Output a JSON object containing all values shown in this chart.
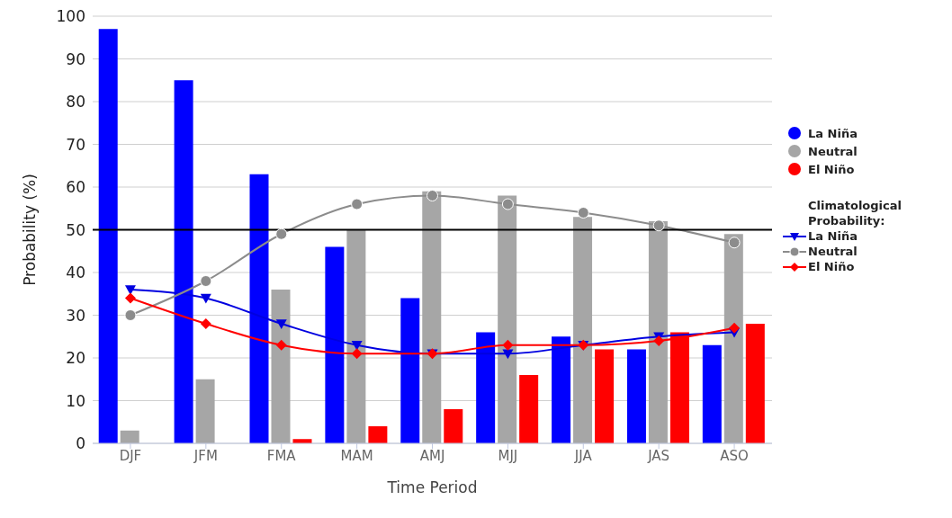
{
  "chart_data": {
    "type": "bar",
    "xlabel": "Time Period",
    "ylabel": "Probability (%)",
    "legend_title": "Climatological Probability:",
    "categories": [
      "DJF",
      "JFM",
      "FMA",
      "MAM",
      "AMJ",
      "MJJ",
      "JJA",
      "JAS",
      "ASO"
    ],
    "series": [
      {
        "name": "La Niña",
        "color": "#0000ff",
        "values": [
          97,
          85,
          63,
          46,
          34,
          26,
          25,
          22,
          23
        ]
      },
      {
        "name": "Neutral",
        "color": "#a6a6a6",
        "values": [
          3,
          15,
          36,
          50,
          59,
          58,
          53,
          52,
          49
        ]
      },
      {
        "name": "El Niño",
        "color": "#ff0000",
        "values": [
          0,
          0,
          1,
          4,
          8,
          16,
          22,
          26,
          28
        ]
      },
      {
        "name": "La Niña",
        "type": "line",
        "marker": "triangle",
        "color": "#0000e0",
        "values": [
          36,
          34,
          28,
          23,
          21,
          21,
          23,
          25,
          26
        ]
      },
      {
        "name": "Neutral",
        "type": "line",
        "marker": "circle",
        "color": "#8c8c8c",
        "values": [
          30,
          38,
          49,
          56,
          58,
          56,
          54,
          51,
          47
        ]
      },
      {
        "name": "El Niño",
        "type": "line",
        "marker": "diamond",
        "color": "#ff0000",
        "values": [
          34,
          28,
          23,
          21,
          21,
          23,
          23,
          24,
          27
        ]
      }
    ],
    "ylim": [
      0,
      100
    ],
    "yticks": [
      0,
      10,
      20,
      30,
      40,
      50,
      60,
      70,
      80,
      90,
      100
    ],
    "grid": "y",
    "legend": "right",
    "ref_lines": [
      {
        "axis": "y",
        "value": 50,
        "color": "#000000"
      }
    ]
  }
}
